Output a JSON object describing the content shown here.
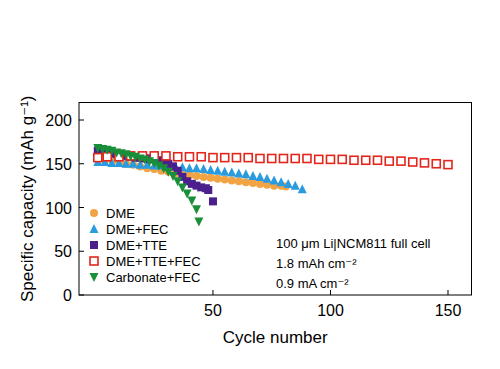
{
  "chart_data": {
    "type": "scatter",
    "x_label": "Cycle number",
    "y_label": "Specific capacity (mAh g⁻¹)",
    "xlim": [
      -7,
      160
    ],
    "ylim": [
      0,
      220
    ],
    "xticks": [
      50,
      100,
      150
    ],
    "yticks": [
      0,
      50,
      100,
      150,
      200
    ],
    "legend": "lower-left",
    "annotations": [
      "100 μm Li|NCM811 full cell",
      "1.8 mAh cm⁻²",
      "0.9 mA cm⁻²"
    ],
    "series": [
      {
        "name": "DME",
        "color": "#f2a444",
        "marker": "circle",
        "x": [
          1,
          4,
          7,
          10,
          13,
          16,
          19,
          22,
          25,
          28,
          31,
          34,
          37,
          40,
          43,
          46,
          49,
          52,
          55,
          58,
          61,
          64,
          67,
          70,
          73,
          76,
          79,
          81
        ],
        "values": [
          157,
          155,
          154,
          152,
          150,
          149,
          147,
          145,
          144,
          142,
          141,
          139,
          138,
          137,
          136,
          135,
          134,
          133,
          132,
          131,
          130,
          129,
          128,
          127,
          126,
          125,
          125,
          124
        ]
      },
      {
        "name": "DME+FEC",
        "color": "#2b9be0",
        "marker": "triangle",
        "x": [
          1,
          4,
          7,
          10,
          13,
          16,
          19,
          22,
          25,
          28,
          31,
          34,
          37,
          40,
          43,
          46,
          49,
          52,
          55,
          58,
          61,
          64,
          67,
          70,
          73,
          76,
          79,
          82,
          85,
          88
        ],
        "values": [
          152,
          152,
          151,
          151,
          150,
          150,
          149,
          149,
          148,
          148,
          147,
          147,
          146,
          145,
          145,
          144,
          143,
          142,
          141,
          140,
          139,
          138,
          136,
          135,
          133,
          131,
          129,
          127,
          125,
          121
        ]
      },
      {
        "name": "DME+TTE",
        "color": "#4b1f8c",
        "marker": "square",
        "x": [
          1,
          3,
          5,
          7,
          9,
          11,
          13,
          15,
          17,
          19,
          21,
          23,
          25,
          27,
          29,
          31,
          33,
          35,
          37,
          39,
          41,
          43,
          45,
          47,
          48,
          50
        ],
        "values": [
          165,
          164,
          163,
          162,
          161,
          160,
          159,
          158,
          157,
          157,
          156,
          156,
          155,
          154,
          152,
          150,
          147,
          142,
          135,
          130,
          127,
          125,
          123,
          122,
          120,
          107
        ]
      },
      {
        "name": "DME+TTE+FEC",
        "color": "#e3261c",
        "marker": "square-open",
        "x": [
          1,
          5,
          10,
          15,
          20,
          25,
          30,
          35,
          40,
          45,
          50,
          55,
          60,
          65,
          70,
          75,
          80,
          85,
          90,
          95,
          100,
          105,
          110,
          115,
          120,
          125,
          130,
          135,
          140,
          145,
          150
        ],
        "values": [
          157,
          158,
          158,
          159,
          159,
          159,
          159,
          158,
          158,
          158,
          157,
          157,
          157,
          157,
          156,
          156,
          156,
          156,
          156,
          155,
          155,
          155,
          154,
          154,
          154,
          153,
          153,
          152,
          151,
          150,
          149
        ]
      },
      {
        "name": "Carbonate+FEC",
        "color": "#1a8f3a",
        "marker": "triangle-down",
        "x": [
          1,
          3,
          5,
          7,
          9,
          11,
          13,
          15,
          17,
          19,
          21,
          23,
          25,
          27,
          29,
          31,
          33,
          35,
          37,
          39,
          41,
          43,
          44
        ],
        "values": [
          168,
          167,
          166,
          165,
          163,
          162,
          161,
          159,
          158,
          156,
          155,
          153,
          151,
          148,
          145,
          141,
          136,
          130,
          123,
          116,
          108,
          98,
          84
        ]
      }
    ]
  }
}
